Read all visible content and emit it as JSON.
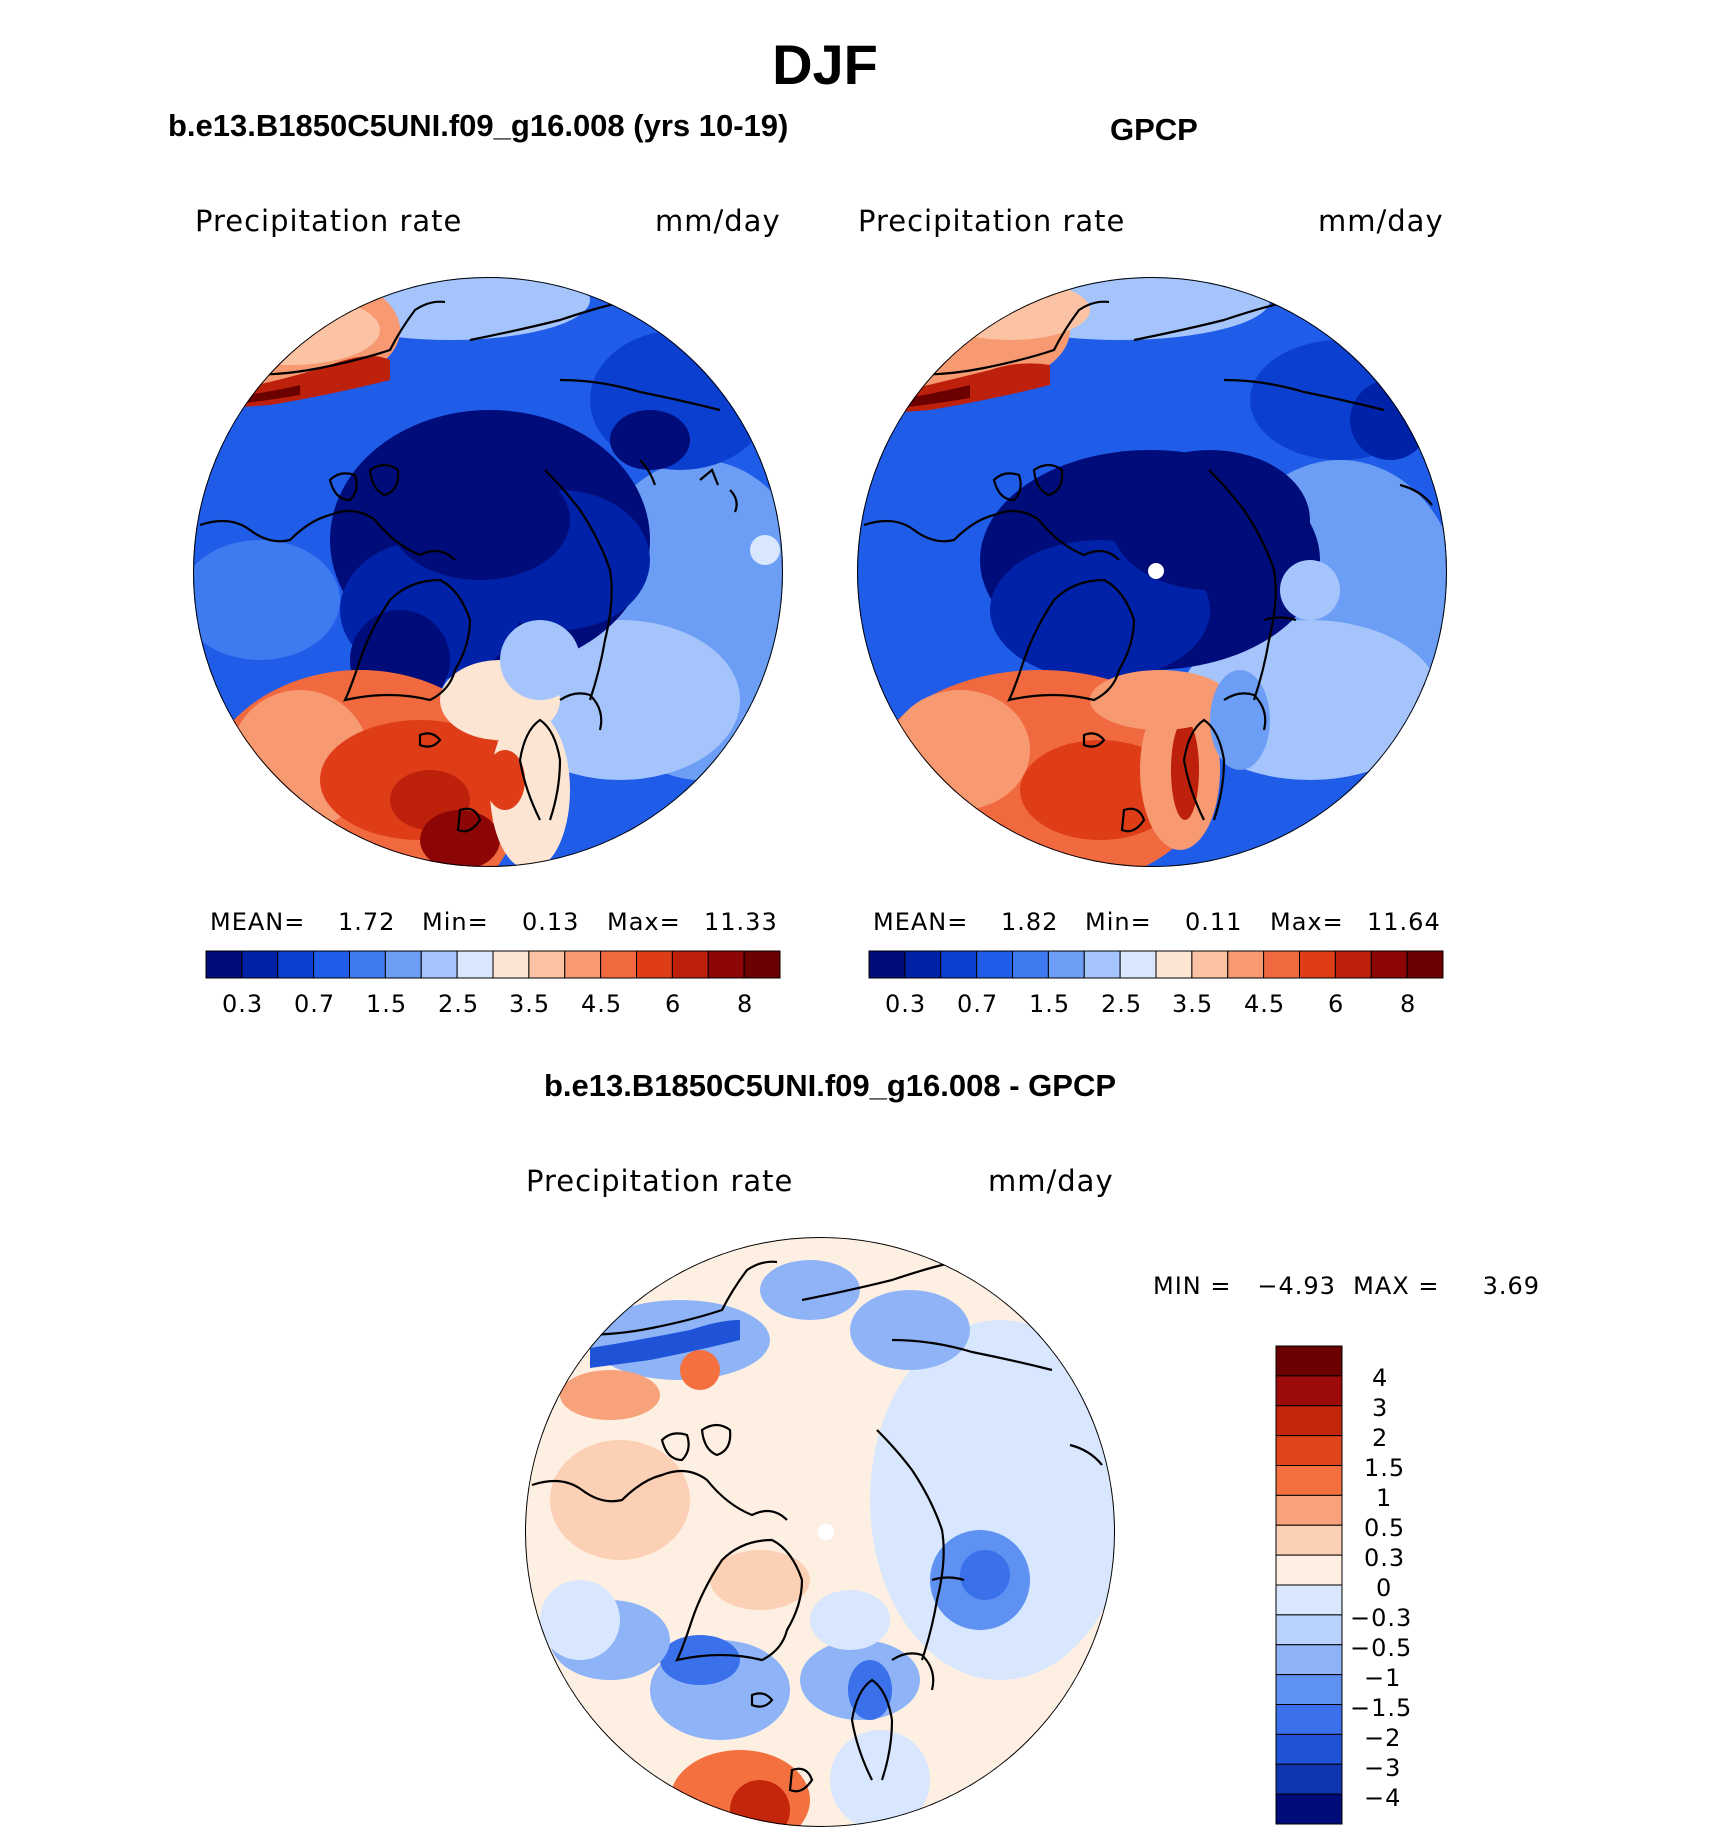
{
  "title": "DJF",
  "colors": {
    "land_outline": "#000000",
    "abs_scale": [
      "#000c7a",
      "#0022a8",
      "#0b3fd0",
      "#1f5ce8",
      "#3f7bf0",
      "#6c9ef5",
      "#a5c4fb",
      "#d8e7fd",
      "#fde5d3",
      "#fbc3a3",
      "#f79a71",
      "#f16a3f",
      "#de3d18",
      "#bd200b",
      "#8c0606",
      "#6a0000"
    ],
    "diff_scale": [
      "#6a0000",
      "#9d0a0a",
      "#c4260c",
      "#e0451c",
      "#f4703f",
      "#f8a27b",
      "#fcd0b5",
      "#fdf0e3",
      "#d8e7fd",
      "#b8d2fb",
      "#8eb4f7",
      "#5e91f2",
      "#3a71ea",
      "#1e53d8",
      "#0f35b1",
      "#000c7a"
    ]
  },
  "panels": {
    "model": {
      "header": "b.e13.B1850C5UNI.f09_g16.008 (yrs 10-19)",
      "variable": "Precipitation  rate",
      "units": "mm/day",
      "mean_label": "MEAN=",
      "mean": "1.72",
      "min_label": "Min=",
      "min": "0.13",
      "max_label": "Max=",
      "max": "11.33",
      "ticks": [
        "0.3",
        "0.7",
        "1.5",
        "2.5",
        "3.5",
        "4.5",
        "6",
        "8"
      ]
    },
    "obs": {
      "header": "GPCP",
      "variable": "Precipitation  rate",
      "units": "mm/day",
      "mean_label": "MEAN=",
      "mean": "1.82",
      "min_label": "Min=",
      "min": "0.11",
      "max_label": "Max=",
      "max": "11.64",
      "ticks": [
        "0.3",
        "0.7",
        "1.5",
        "2.5",
        "3.5",
        "4.5",
        "6",
        "8"
      ]
    },
    "diff": {
      "header": "b.e13.B1850C5UNI.f09_g16.008 - GPCP",
      "variable": "Precipitation  rate",
      "units": "mm/day",
      "minmax": "MIN =   −4.93  MAX =     3.69",
      "ticks": [
        "4",
        "3",
        "2",
        "1.5",
        "1",
        "0.5",
        "0.3",
        "0",
        "−0.3",
        "−0.5",
        "−1",
        "−1.5",
        "−2",
        "−3",
        "−4"
      ]
    }
  }
}
